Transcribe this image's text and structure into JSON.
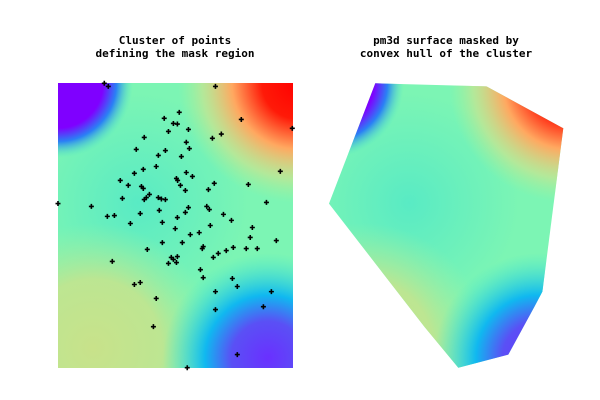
{
  "chart_data": [
    {
      "type": "heatmap",
      "title": [
        "Cluster of points",
        "defining the mask region"
      ],
      "xlim": [
        0,
        100
      ],
      "ylim": [
        0,
        100
      ],
      "grid": false,
      "axes_visible": false,
      "colormap": "rainbow",
      "surface_colors": {
        "top_left": "#7f00ff",
        "top_right": "#ff0000",
        "bottom_left": "#c8e28a",
        "bottom_right": "#6a30ff",
        "center": "#7cf5b4"
      },
      "overlay": {
        "type": "scatter",
        "marker": "plus",
        "color": "#000000",
        "points": [
          [
            19.7,
            99.9
          ],
          [
            21.4,
            98.8
          ],
          [
            67.0,
            98.8
          ],
          [
            51.6,
            89.7
          ],
          [
            45.2,
            87.6
          ],
          [
            49.1,
            85.8
          ],
          [
            50.8,
            85.6
          ],
          [
            78.0,
            87.2
          ],
          [
            99.7,
            84.1
          ],
          [
            47.0,
            83.0
          ],
          [
            55.5,
            83.7
          ],
          [
            36.7,
            80.9
          ],
          [
            65.7,
            80.6
          ],
          [
            69.5,
            82.1
          ],
          [
            54.6,
            79.2
          ],
          [
            33.3,
            76.7
          ],
          [
            45.7,
            76.3
          ],
          [
            55.9,
            77.0
          ],
          [
            42.7,
            74.6
          ],
          [
            52.5,
            74.2
          ],
          [
            41.8,
            70.7
          ],
          [
            36.3,
            69.7
          ],
          [
            32.5,
            68.3
          ],
          [
            54.6,
            68.6
          ],
          [
            94.6,
            69.0
          ],
          [
            26.5,
            65.8
          ],
          [
            50.4,
            66.5
          ],
          [
            50.9,
            65.8
          ],
          [
            57.2,
            67.2
          ],
          [
            29.9,
            64.1
          ],
          [
            66.5,
            64.8
          ],
          [
            52.1,
            64.1
          ],
          [
            81.0,
            64.4
          ],
          [
            35.5,
            63.7
          ],
          [
            36.3,
            63.0
          ],
          [
            54.2,
            62.3
          ],
          [
            64.0,
            62.6
          ],
          [
            38.9,
            60.9
          ],
          [
            37.6,
            59.8
          ],
          [
            36.7,
            59.1
          ],
          [
            27.4,
            59.5
          ],
          [
            42.7,
            59.8
          ],
          [
            44.0,
            59.3
          ],
          [
            45.7,
            59.1
          ],
          [
            0.0,
            57.7
          ],
          [
            14.2,
            56.7
          ],
          [
            88.7,
            58.1
          ],
          [
            63.3,
            56.7
          ],
          [
            64.4,
            55.6
          ],
          [
            43.1,
            55.3
          ],
          [
            55.5,
            56.3
          ],
          [
            21.0,
            53.2
          ],
          [
            24.0,
            53.5
          ],
          [
            35.0,
            54.2
          ],
          [
            54.2,
            54.6
          ],
          [
            50.8,
            52.8
          ],
          [
            70.4,
            53.9
          ],
          [
            73.8,
            51.8
          ],
          [
            30.8,
            50.7
          ],
          [
            44.4,
            51.1
          ],
          [
            64.8,
            50.0
          ],
          [
            82.7,
            49.3
          ],
          [
            49.9,
            48.9
          ],
          [
            60.1,
            47.5
          ],
          [
            56.3,
            46.8
          ],
          [
            81.8,
            45.8
          ],
          [
            92.9,
            44.7
          ],
          [
            44.4,
            44.0
          ],
          [
            52.9,
            44.0
          ],
          [
            61.8,
            42.6
          ],
          [
            61.4,
            41.9
          ],
          [
            74.6,
            42.3
          ],
          [
            80.1,
            41.9
          ],
          [
            84.8,
            41.9
          ],
          [
            71.6,
            41.2
          ],
          [
            38.0,
            41.6
          ],
          [
            68.2,
            40.2
          ],
          [
            66.1,
            38.8
          ],
          [
            48.2,
            38.8
          ],
          [
            49.1,
            38.1
          ],
          [
            50.8,
            39.1
          ],
          [
            50.4,
            37.0
          ],
          [
            47.0,
            36.7
          ],
          [
            23.1,
            37.4
          ],
          [
            60.6,
            34.5
          ],
          [
            61.8,
            31.7
          ],
          [
            74.2,
            31.4
          ],
          [
            32.5,
            29.3
          ],
          [
            35.0,
            30.0
          ],
          [
            76.3,
            28.6
          ],
          [
            67.0,
            26.8
          ],
          [
            90.8,
            26.8
          ],
          [
            41.8,
            24.4
          ],
          [
            87.4,
            21.5
          ],
          [
            67.0,
            20.5
          ],
          [
            40.6,
            14.5
          ],
          [
            76.3,
            4.7
          ],
          [
            55.0,
            0.1
          ]
        ]
      }
    },
    {
      "type": "heatmap",
      "title": [
        "pm3d surface masked by",
        "convex hull of the cluster"
      ],
      "xlim": [
        0,
        100
      ],
      "ylim": [
        0,
        100
      ],
      "grid": false,
      "axes_visible": false,
      "colormap": "rainbow",
      "mask": "convex hull of the cluster points"
    }
  ]
}
